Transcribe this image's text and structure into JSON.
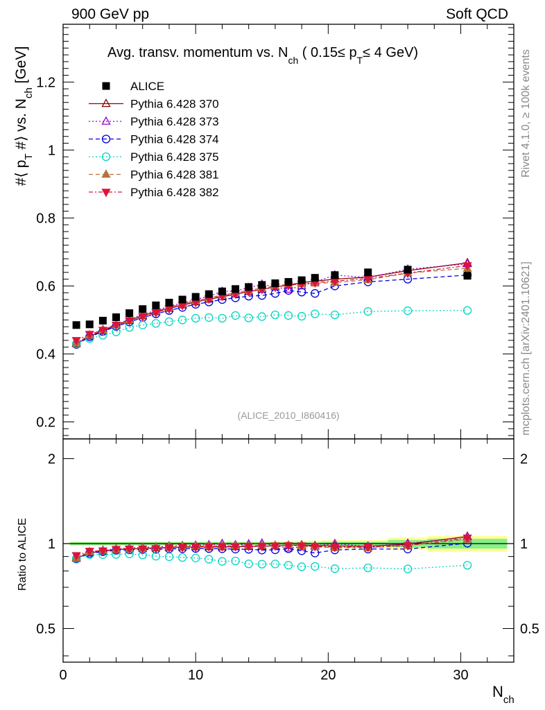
{
  "header": {
    "left": "900 GeV pp",
    "right": "Soft QCD"
  },
  "side": {
    "upper": "Rivet 4.1.0, ≥ 100k events",
    "lower": "mcplots.cern.ch [arXiv:2401.10621]"
  },
  "colors": {
    "ALICE": "#000000",
    "p370": "#8b0000",
    "p373": "#9400d3",
    "p374": "#0000dd",
    "p375": "#00d5c0",
    "p381": "#b5733a",
    "p382": "#dc143c",
    "band_inner": "#88f088",
    "band_outer": "#ffff99"
  },
  "chart_data": {
    "type": "scatter",
    "title": "Avg. transv. momentum vs. N_ch ( 0.15≤ p_T≤ 4 GeV)",
    "title_parts": {
      "main": "Avg. transv. momentum vs. N",
      "sub_ch": "ch",
      "mid": " ( 0.15≤ p",
      "sub_T": "T",
      "end": "≤ 4 GeV)"
    },
    "ylabel_parts": {
      "a": "#⟨ p",
      "subT": "T",
      "b": " #⟩ vs. N",
      "subch": "ch",
      "c": " [GeV]"
    },
    "xlabel": {
      "main": "N",
      "sub": "ch"
    },
    "ratio_ylabel": "Ratio to ALICE",
    "watermark": "(ALICE_2010_I860416)",
    "xlim": [
      0,
      34
    ],
    "ylim": [
      0.15,
      1.37
    ],
    "ratio_ylim": [
      0.38,
      2.35
    ],
    "x_ticks": [
      "0",
      "10",
      "20",
      "30"
    ],
    "y_ticks": [
      "0.2",
      "0.4",
      "0.6",
      "0.8",
      "1",
      "1.2"
    ],
    "ratio_ticks": [
      "0.5",
      "1",
      "2"
    ],
    "x": [
      1,
      2,
      3,
      4,
      5,
      6,
      7,
      8,
      9,
      10,
      11,
      12,
      13,
      14,
      15,
      16,
      17,
      18,
      19,
      20.5,
      23,
      26,
      30.5
    ],
    "series": [
      {
        "name": "ALICE",
        "marker": "square",
        "values": [
          0.485,
          0.487,
          0.498,
          0.508,
          0.52,
          0.532,
          0.543,
          0.551,
          0.56,
          0.568,
          0.576,
          0.584,
          0.591,
          0.597,
          0.603,
          0.608,
          0.612,
          0.617,
          0.624,
          0.632,
          0.64,
          0.648,
          0.63
        ]
      },
      {
        "name": "Pythia 6.428 370",
        "marker": "triangle-open",
        "dash": "",
        "values": [
          0.43,
          0.452,
          0.468,
          0.484,
          0.498,
          0.512,
          0.524,
          0.534,
          0.544,
          0.553,
          0.561,
          0.568,
          0.576,
          0.583,
          0.59,
          0.597,
          0.603,
          0.61,
          0.614,
          0.62,
          0.626,
          0.645,
          0.668
        ]
      },
      {
        "name": "Pythia 6.428 373",
        "marker": "triangle-open",
        "dash": "2,3",
        "values": [
          0.432,
          0.455,
          0.472,
          0.487,
          0.502,
          0.516,
          0.528,
          0.54,
          0.55,
          0.56,
          0.57,
          0.584,
          0.585,
          0.595,
          0.605,
          0.597,
          0.59,
          0.6,
          0.612,
          0.632,
          0.625,
          0.649,
          0.665
        ]
      },
      {
        "name": "Pythia 6.428 374",
        "marker": "circle-open",
        "dash": "6,4",
        "values": [
          0.428,
          0.45,
          0.466,
          0.481,
          0.494,
          0.507,
          0.518,
          0.528,
          0.537,
          0.546,
          0.553,
          0.56,
          0.565,
          0.57,
          0.572,
          0.578,
          0.587,
          0.582,
          0.578,
          0.6,
          0.612,
          0.62,
          0.632
        ]
      },
      {
        "name": "Pythia 6.428 375",
        "marker": "circle-open",
        "dash": "2,3",
        "values": [
          0.43,
          0.445,
          0.455,
          0.465,
          0.478,
          0.485,
          0.49,
          0.495,
          0.5,
          0.505,
          0.507,
          0.505,
          0.513,
          0.506,
          0.51,
          0.515,
          0.513,
          0.511,
          0.518,
          0.515,
          0.525,
          0.527,
          0.528
        ]
      },
      {
        "name": "Pythia 6.428 381",
        "marker": "triangle-filled",
        "dash": "6,4",
        "values": [
          0.432,
          0.456,
          0.471,
          0.486,
          0.5,
          0.514,
          0.526,
          0.537,
          0.547,
          0.556,
          0.565,
          0.573,
          0.58,
          0.587,
          0.594,
          0.6,
          0.605,
          0.606,
          0.608,
          0.61,
          0.618,
          0.638,
          0.652
        ]
      },
      {
        "name": "Pythia 6.428 382",
        "marker": "triangle-down-filled",
        "dash": "6,3,2,3",
        "values": [
          0.44,
          0.458,
          0.47,
          0.485,
          0.498,
          0.51,
          0.522,
          0.533,
          0.543,
          0.552,
          0.562,
          0.57,
          0.577,
          0.584,
          0.59,
          0.597,
          0.602,
          0.606,
          0.61,
          0.614,
          0.622,
          0.638,
          0.66
        ]
      }
    ],
    "error_bands": {
      "x_edges": [
        0.5,
        1.5,
        2.5,
        3.5,
        4.5,
        5.5,
        6.5,
        7.5,
        8.5,
        9.5,
        10.5,
        11.5,
        12.5,
        13.5,
        14.5,
        15.5,
        16.5,
        17.5,
        18.5,
        19.5,
        21.5,
        24.5,
        27.5,
        33.5
      ],
      "inner_rel": [
        0.012,
        0.012,
        0.012,
        0.012,
        0.012,
        0.012,
        0.012,
        0.012,
        0.012,
        0.012,
        0.012,
        0.012,
        0.012,
        0.012,
        0.012,
        0.012,
        0.012,
        0.012,
        0.012,
        0.015,
        0.015,
        0.03,
        0.04
      ],
      "outer_rel": [
        0.018,
        0.018,
        0.018,
        0.018,
        0.018,
        0.018,
        0.018,
        0.018,
        0.018,
        0.018,
        0.018,
        0.018,
        0.018,
        0.018,
        0.018,
        0.018,
        0.02,
        0.022,
        0.025,
        0.028,
        0.03,
        0.05,
        0.065
      ]
    }
  }
}
